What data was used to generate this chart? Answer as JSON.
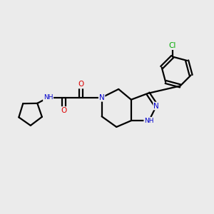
{
  "background_color": "#ebebeb",
  "atom_colors": {
    "C": "#000000",
    "N": "#0000cc",
    "O": "#dd0000",
    "Cl": "#00aa00",
    "H": "#4488aa"
  },
  "figsize": [
    3.0,
    3.0
  ],
  "dpi": 100
}
